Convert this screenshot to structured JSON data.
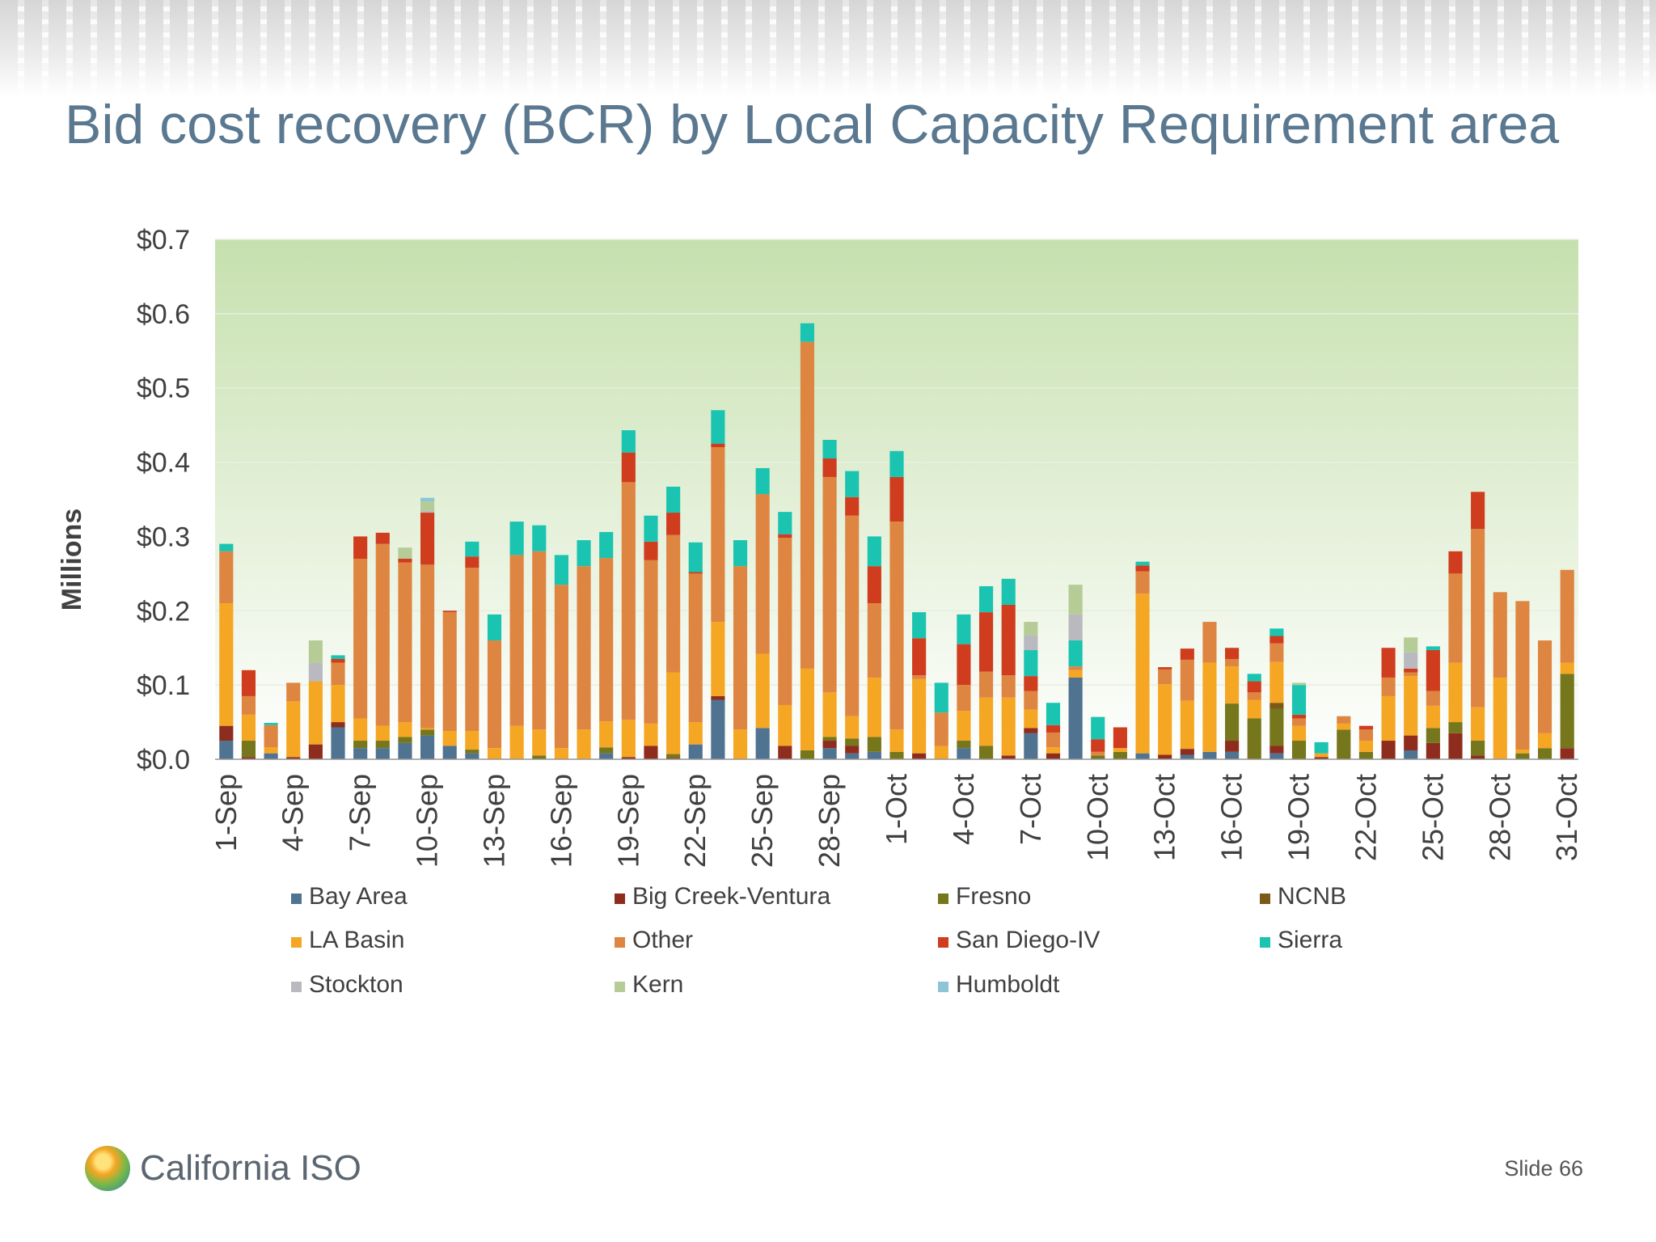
{
  "slide": {
    "title": "Bid cost recovery (BCR) by Local Capacity Requirement area",
    "logo_text": "California ISO",
    "slide_number": "Slide 66"
  },
  "chart_data": {
    "type": "bar",
    "stacked": true,
    "ylabel": "Millions",
    "ylim": [
      0,
      0.7
    ],
    "yticks": [
      "$0.0",
      "$0.1",
      "$0.2",
      "$0.3",
      "$0.4",
      "$0.5",
      "$0.6",
      "$0.7"
    ],
    "grid": true,
    "legend_position": "bottom",
    "categories": [
      "1-Sep",
      "2-Sep",
      "3-Sep",
      "4-Sep",
      "5-Sep",
      "6-Sep",
      "7-Sep",
      "8-Sep",
      "9-Sep",
      "10-Sep",
      "11-Sep",
      "12-Sep",
      "13-Sep",
      "14-Sep",
      "15-Sep",
      "16-Sep",
      "17-Sep",
      "18-Sep",
      "19-Sep",
      "20-Sep",
      "21-Sep",
      "22-Sep",
      "23-Sep",
      "24-Sep",
      "25-Sep",
      "26-Sep",
      "27-Sep",
      "28-Sep",
      "29-Sep",
      "30-Sep",
      "1-Oct",
      "2-Oct",
      "3-Oct",
      "4-Oct",
      "5-Oct",
      "6-Oct",
      "7-Oct",
      "8-Oct",
      "9-Oct",
      "10-Oct",
      "11-Oct",
      "12-Oct",
      "13-Oct",
      "14-Oct",
      "15-Oct",
      "16-Oct",
      "17-Oct",
      "18-Oct",
      "19-Oct",
      "20-Oct",
      "21-Oct",
      "22-Oct",
      "23-Oct",
      "24-Oct",
      "25-Oct",
      "26-Oct",
      "27-Oct",
      "28-Oct",
      "29-Oct",
      "30-Oct",
      "31-Oct"
    ],
    "tick_labels": [
      "1-Sep",
      "4-Sep",
      "7-Sep",
      "10-Sep",
      "13-Sep",
      "16-Sep",
      "19-Sep",
      "22-Sep",
      "25-Sep",
      "28-Sep",
      "1-Oct",
      "4-Oct",
      "7-Oct",
      "10-Oct",
      "13-Oct",
      "16-Oct",
      "19-Oct",
      "22-Oct",
      "25-Oct",
      "28-Oct",
      "31-Oct"
    ],
    "series": [
      {
        "name": "Bay Area",
        "color": "#4f7391",
        "values": [
          0.025,
          0,
          0.008,
          0,
          0,
          0.043,
          0.015,
          0.015,
          0.022,
          0.032,
          0.018,
          0.008,
          0,
          0,
          0,
          0,
          0,
          0.008,
          0,
          0,
          0,
          0.02,
          0.08,
          0,
          0.042,
          0,
          0,
          0.015,
          0.008,
          0.01,
          0,
          0,
          0,
          0.015,
          0,
          0,
          0.035,
          0,
          0.11,
          0,
          0,
          0.008,
          0,
          0.006,
          0.01,
          0.01,
          0,
          0.008,
          0,
          0,
          0,
          0,
          0,
          0.012,
          0,
          0,
          0,
          0,
          0,
          0,
          0
        ]
      },
      {
        "name": "Big Creek-Ventura",
        "color": "#8e2d1e",
        "values": [
          0.02,
          0.003,
          0,
          0.003,
          0.02,
          0.007,
          0,
          0,
          0,
          0,
          0,
          0,
          0,
          0,
          0,
          0,
          0,
          0,
          0.003,
          0.018,
          0.002,
          0,
          0.005,
          0,
          0,
          0.018,
          0,
          0.01,
          0.01,
          0,
          0,
          0.008,
          0,
          0,
          0,
          0.005,
          0.007,
          0.008,
          0,
          0,
          0,
          0,
          0.006,
          0.008,
          0,
          0.015,
          0,
          0.01,
          0,
          0.003,
          0,
          0,
          0.025,
          0.02,
          0.022,
          0.035,
          0.005,
          0,
          0,
          0,
          0.015
        ]
      },
      {
        "name": "Fresno",
        "color": "#76761c",
        "values": [
          0,
          0.022,
          0,
          0,
          0,
          0,
          0.01,
          0.01,
          0.008,
          0.008,
          0,
          0.005,
          0,
          0,
          0.005,
          0,
          0,
          0.008,
          0,
          0,
          0.005,
          0,
          0,
          0,
          0,
          0,
          0.012,
          0.005,
          0.01,
          0.02,
          0.01,
          0,
          0,
          0.01,
          0.018,
          0,
          0,
          0,
          0,
          0.005,
          0.01,
          0,
          0,
          0,
          0,
          0.05,
          0.055,
          0.05,
          0.025,
          0,
          0.04,
          0.01,
          0,
          0,
          0.02,
          0.015,
          0.02,
          0,
          0.008,
          0.015,
          0.1
        ]
      },
      {
        "name": "NCNB",
        "color": "#7a5a16",
        "values": [
          0,
          0,
          0,
          0,
          0,
          0,
          0,
          0,
          0,
          0,
          0,
          0,
          0,
          0,
          0,
          0,
          0,
          0,
          0,
          0,
          0,
          0,
          0,
          0,
          0,
          0,
          0,
          0,
          0,
          0,
          0,
          0,
          0,
          0,
          0,
          0,
          0,
          0,
          0,
          0,
          0,
          0,
          0,
          0,
          0,
          0,
          0,
          0.008,
          0,
          0,
          0,
          0,
          0,
          0,
          0,
          0,
          0,
          0,
          0,
          0,
          0
        ]
      },
      {
        "name": "LA Basin",
        "color": "#f5a623",
        "values": [
          0.165,
          0.035,
          0.008,
          0.075,
          0.085,
          0.05,
          0.03,
          0.02,
          0.02,
          0.002,
          0.02,
          0.025,
          0.015,
          0.045,
          0.035,
          0.015,
          0.04,
          0.035,
          0.05,
          0.03,
          0.11,
          0.03,
          0.1,
          0.04,
          0.1,
          0.055,
          0.11,
          0.06,
          0.03,
          0.08,
          0.03,
          0.1,
          0.018,
          0.04,
          0.065,
          0.078,
          0.025,
          0.008,
          0.01,
          0,
          0.005,
          0.215,
          0.095,
          0.065,
          0.12,
          0.05,
          0.025,
          0.055,
          0.02,
          0.005,
          0.008,
          0.015,
          0.06,
          0.08,
          0.03,
          0.08,
          0.045,
          0.11,
          0.005,
          0.02,
          0.015
        ]
      },
      {
        "name": "Other",
        "color": "#de8641",
        "values": [
          0.07,
          0.025,
          0.03,
          0.025,
          0.0,
          0.03,
          0.215,
          0.245,
          0.215,
          0.22,
          0.16,
          0.22,
          0.145,
          0.23,
          0.24,
          0.22,
          0.22,
          0.22,
          0.32,
          0.22,
          0.185,
          0.2,
          0.235,
          0.22,
          0.215,
          0.225,
          0.44,
          0.29,
          0.27,
          0.1,
          0.28,
          0.005,
          0.045,
          0.035,
          0.035,
          0.03,
          0.025,
          0.02,
          0.005,
          0.005,
          0,
          0.03,
          0.02,
          0.055,
          0.055,
          0.01,
          0.01,
          0.025,
          0.01,
          0,
          0.01,
          0.015,
          0.025,
          0.005,
          0.02,
          0.12,
          0.24,
          0.115,
          0.2,
          0.125,
          0.125
        ]
      },
      {
        "name": "San Diego-IV",
        "color": "#cf3d1e",
        "values": [
          0,
          0.035,
          0,
          0,
          0,
          0.005,
          0.03,
          0.015,
          0.005,
          0.07,
          0.002,
          0.015,
          0,
          0,
          0,
          0,
          0,
          0,
          0.04,
          0.025,
          0.03,
          0.002,
          0.005,
          0,
          0,
          0.005,
          0,
          0.025,
          0.025,
          0.05,
          0.06,
          0.05,
          0,
          0.055,
          0.08,
          0.095,
          0.02,
          0.01,
          0,
          0.017,
          0.028,
          0.008,
          0.003,
          0.015,
          0,
          0.015,
          0.015,
          0.01,
          0.005,
          0,
          0,
          0.005,
          0.04,
          0.005,
          0.055,
          0.03,
          0.05,
          0,
          0,
          0,
          0
        ]
      },
      {
        "name": "Sierra",
        "color": "#1ac4b0",
        "values": [
          0.01,
          0,
          0.003,
          0,
          0,
          0.005,
          0,
          0,
          0,
          0,
          0,
          0.02,
          0.035,
          0.045,
          0.035,
          0.04,
          0.035,
          0.035,
          0.03,
          0.035,
          0.035,
          0.04,
          0.045,
          0.035,
          0.035,
          0.03,
          0.025,
          0.025,
          0.035,
          0.04,
          0.035,
          0.035,
          0.04,
          0.04,
          0.035,
          0.035,
          0.035,
          0.03,
          0.035,
          0.03,
          0,
          0.005,
          0,
          0,
          0,
          0,
          0.01,
          0.01,
          0.04,
          0.015,
          0,
          0,
          0,
          0,
          0.005,
          0,
          0,
          0,
          0,
          0,
          0
        ]
      },
      {
        "name": "Stockton",
        "color": "#b9b9bf",
        "values": [
          0,
          0,
          0,
          0,
          0.025,
          0,
          0,
          0,
          0,
          0.003,
          0,
          0,
          0,
          0,
          0,
          0,
          0,
          0,
          0,
          0,
          0,
          0,
          0,
          0,
          0,
          0,
          0,
          0,
          0,
          0,
          0,
          0,
          0,
          0,
          0,
          0,
          0.02,
          0,
          0.035,
          0,
          0,
          0,
          0,
          0,
          0,
          0,
          0,
          0,
          0,
          0,
          0,
          0,
          0,
          0.022,
          0,
          0,
          0,
          0,
          0,
          0,
          0
        ]
      },
      {
        "name": "Kern",
        "color": "#b6cc96",
        "values": [
          0,
          0,
          0,
          0,
          0.03,
          0,
          0,
          0,
          0.015,
          0.012,
          0,
          0,
          0,
          0,
          0,
          0,
          0,
          0,
          0,
          0,
          0,
          0,
          0,
          0,
          0,
          0,
          0,
          0,
          0,
          0,
          0,
          0,
          0,
          0,
          0,
          0,
          0.018,
          0,
          0.04,
          0,
          0,
          0,
          0,
          0,
          0,
          0,
          0,
          0,
          0.003,
          0,
          0,
          0,
          0,
          0.02,
          0,
          0,
          0,
          0,
          0,
          0,
          0
        ]
      },
      {
        "name": "Humboldt",
        "color": "#8dc4d6",
        "values": [
          0,
          0,
          0,
          0,
          0,
          0,
          0,
          0,
          0,
          0.005,
          0,
          0,
          0,
          0,
          0,
          0,
          0,
          0,
          0,
          0,
          0,
          0,
          0,
          0,
          0,
          0,
          0,
          0,
          0,
          0,
          0,
          0,
          0,
          0,
          0,
          0,
          0,
          0,
          0,
          0,
          0,
          0,
          0,
          0,
          0,
          0,
          0,
          0,
          0,
          0,
          0,
          0,
          0,
          0,
          0,
          0,
          0,
          0,
          0,
          0,
          0
        ]
      }
    ]
  }
}
